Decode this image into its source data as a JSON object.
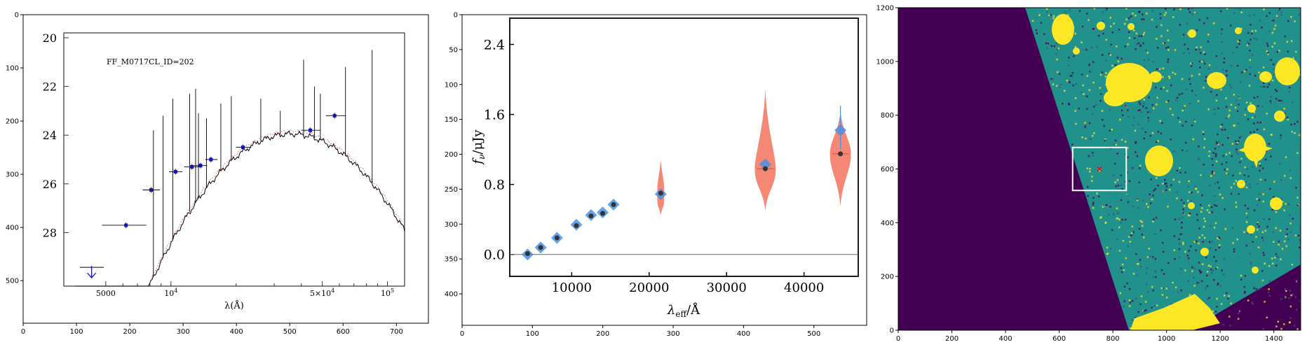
{
  "panels": [
    {
      "id": "sed-image",
      "type": "image",
      "outer_axes": {
        "x_ticks": [
          0,
          100,
          200,
          300,
          400,
          500,
          600,
          700
        ],
        "y_ticks": [
          0,
          100,
          200,
          300,
          400,
          500
        ],
        "xlim": [
          0,
          760
        ],
        "ylim": [
          580,
          0
        ]
      },
      "inner_plot": {
        "label": "FF_M0717CL_ID=202",
        "x_ticks": [
          "5000",
          "10^4",
          "5×10^4",
          "10^5"
        ],
        "x_tick_values": [
          5000,
          10000,
          50000,
          100000
        ],
        "xlabel": "λ(Å)",
        "y_ticks": [
          "20",
          "22",
          "24",
          "26",
          "28"
        ],
        "y_tick_values": [
          20,
          22,
          24,
          26,
          28
        ],
        "xlim": [
          3200,
          120000
        ],
        "ylim": [
          30.2,
          19.8
        ],
        "xscale": "log",
        "photometry": [
          {
            "x": 6200,
            "y": 27.7,
            "xerr": [
              4800,
              7700
            ]
          },
          {
            "x": 8100,
            "y": 26.25,
            "xerr": [
              7400,
              8900
            ]
          },
          {
            "x": 10500,
            "y": 25.5,
            "xerr": [
              9800,
              11300
            ]
          },
          {
            "x": 12500,
            "y": 25.3,
            "xerr": [
              11500,
              13500
            ]
          },
          {
            "x": 13700,
            "y": 25.25,
            "xerr": [
              12700,
              14700
            ]
          },
          {
            "x": 15300,
            "y": 25.0,
            "xerr": [
              14400,
              16400
            ]
          },
          {
            "x": 21500,
            "y": 24.5,
            "xerr": [
              20000,
              23500
            ]
          },
          {
            "x": 44000,
            "y": 23.8,
            "xerr": [
              40000,
              49000
            ]
          },
          {
            "x": 57000,
            "y": 23.2,
            "xerr": [
              52000,
              64000
            ]
          }
        ],
        "upper_limit": {
          "x": 4300,
          "y": 29.6
        }
      }
    },
    {
      "id": "flux-violin",
      "type": "violin",
      "outer_axes": {
        "x_ticks": [
          0,
          100,
          200,
          300,
          400,
          500
        ],
        "y_ticks": [
          0,
          50,
          100,
          150,
          200,
          250,
          300,
          350,
          400
        ],
        "xlim": [
          0,
          575
        ],
        "ylim": [
          445,
          0
        ]
      },
      "inner_plot": {
        "x_ticks": [
          10000,
          20000,
          30000,
          40000
        ],
        "y_ticks": [
          "0.0",
          "0.8",
          "1.6",
          "2.4"
        ],
        "y_tick_values": [
          0.0,
          0.8,
          1.6,
          2.4
        ],
        "xlabel": "λ_eff / Å",
        "ylabel": "f_ν / µJy",
        "xlim": [
          2000,
          47000
        ],
        "ylim": [
          -0.25,
          2.7
        ],
        "points": [
          {
            "x": 4300,
            "model": 0.01,
            "obs": 0.0
          },
          {
            "x": 6000,
            "model": 0.08,
            "obs": 0.08
          },
          {
            "x": 8100,
            "model": 0.19,
            "obs": 0.19
          },
          {
            "x": 10600,
            "model": 0.33,
            "obs": 0.34
          },
          {
            "x": 12500,
            "model": 0.44,
            "obs": 0.45
          },
          {
            "x": 14000,
            "model": 0.47,
            "obs": 0.48
          },
          {
            "x": 15400,
            "model": 0.57,
            "obs": 0.57
          },
          {
            "x": 21500,
            "model": 0.7,
            "obs": 0.69,
            "violin": [
              0.45,
              1.08
            ]
          },
          {
            "x": 35000,
            "model": 0.98,
            "obs": 1.03,
            "violin": [
              0.5,
              1.9
            ]
          },
          {
            "x": 44700,
            "model": 1.15,
            "obs": 1.42,
            "violin": [
              0.55,
              1.65
            ],
            "err": [
              1.2,
              1.7
            ]
          }
        ]
      }
    },
    {
      "id": "cutout-image",
      "type": "image",
      "outer_axes": {
        "x_ticks": [
          0,
          200,
          400,
          600,
          800,
          1000,
          1200,
          1400
        ],
        "y_ticks": [
          0,
          200,
          400,
          600,
          800,
          1000,
          1200
        ],
        "xlim": [
          0,
          1500
        ],
        "ylim": [
          0,
          1200
        ]
      },
      "marker": {
        "x": 750,
        "y": 600
      },
      "box": {
        "x0": 650,
        "x1": 850,
        "y0": 520,
        "y1": 680
      },
      "colors": {
        "background": "#440154",
        "noise": "#21918c",
        "bright": "#fde725",
        "marker": "#ff0000"
      }
    }
  ]
}
